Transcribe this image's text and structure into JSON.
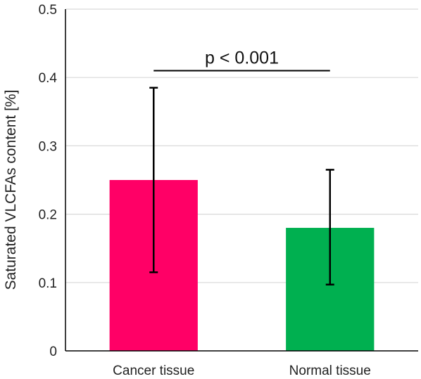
{
  "chart_data": {
    "type": "bar",
    "categories": [
      "Cancer tissue",
      "Normal tissue"
    ],
    "values": [
      0.25,
      0.18
    ],
    "error_low": [
      0.115,
      0.097
    ],
    "error_high": [
      0.385,
      0.265
    ],
    "colors": [
      "#ff0066",
      "#00b050"
    ],
    "ylabel": "Saturated VLCFAs content [%]",
    "ylim": [
      0,
      0.5
    ],
    "yticks": [
      "0",
      "0.1",
      "0.2",
      "0.3",
      "0.4",
      "0.5"
    ],
    "ytick_values": [
      0,
      0.1,
      0.2,
      0.3,
      0.4,
      0.5
    ],
    "grid": true,
    "annotation": {
      "text": "p < 0.001",
      "y": 0.41
    }
  }
}
